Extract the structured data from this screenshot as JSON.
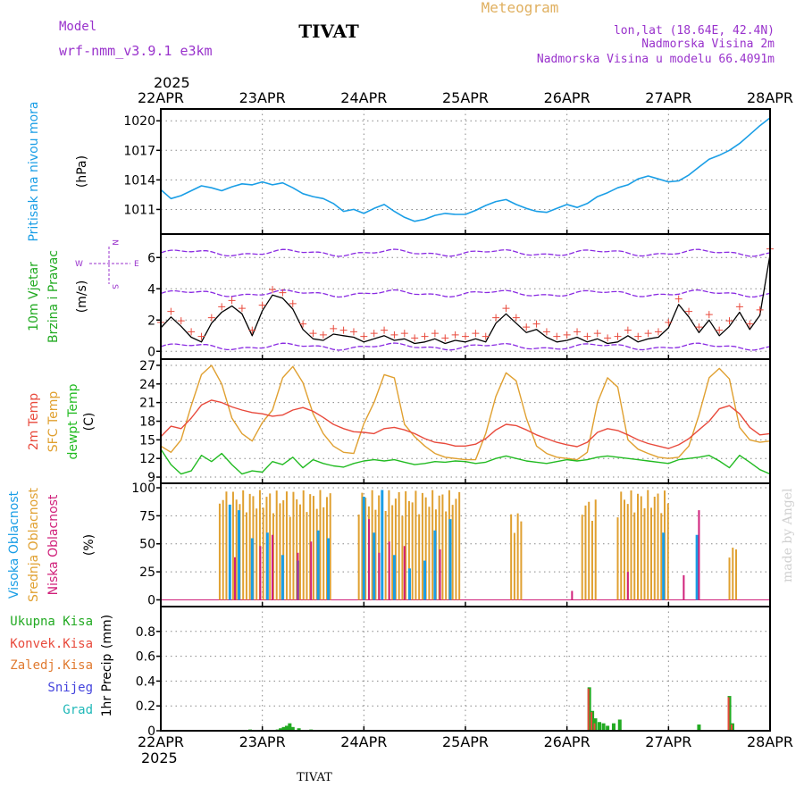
{
  "header": {
    "model_label": "Model",
    "model_name": "wrf-nmm_v3.9.1 e3km",
    "station": "TIVAT",
    "meteogram": "Meteogram",
    "lonlat": "lon,lat (18.64E, 42.4N)",
    "elevation": "Nadmorska Visina 2m",
    "model_elevation": "Nadmorska Visina u modelu 66.4091m",
    "year_top": "2025",
    "year_bottom": "2025",
    "station_footer": "TIVAT",
    "watermark": "made by Angel"
  },
  "colors": {
    "pressure": "#1a9ee6",
    "wind_title": "#22aa22",
    "temp2m": "#e84a3c",
    "sfc": "#e0a030",
    "dewpt": "#22bb22",
    "high_cloud": "#1a9ee6",
    "mid_cloud": "#e0a030",
    "low_cloud": "#d0207a",
    "precip_total": "#22aa22",
    "precip_conv": "#e84a3c",
    "precip_frozen": "#e07a30",
    "snow": "#4444dd",
    "graupel": "#20b8b8",
    "direction": "#8a2be2",
    "speed_line": "#000000",
    "gust": "#e84a3c",
    "header_purple": "#9932cc",
    "meteogram_gold": "#e0b060"
  },
  "chart_data": [
    {
      "type": "line",
      "id": "pressure",
      "ylabel_title": "Pritisak na nivou mora",
      "ylabel_unit": "(hPa)",
      "ylim": [
        1008.5,
        1021.2
      ],
      "yticks": [
        1011,
        1014,
        1017,
        1020
      ],
      "xlim": [
        0,
        6
      ],
      "xlabels": [
        "22APR",
        "23APR",
        "24APR",
        "25APR",
        "26APR",
        "27APR",
        "28APR"
      ],
      "series": [
        {
          "name": "pressure",
          "x": [
            0,
            0.1,
            0.2,
            0.3,
            0.4,
            0.5,
            0.6,
            0.7,
            0.8,
            0.9,
            1.0,
            1.1,
            1.2,
            1.3,
            1.4,
            1.5,
            1.6,
            1.7,
            1.8,
            1.9,
            2.0,
            2.1,
            2.2,
            2.3,
            2.4,
            2.5,
            2.6,
            2.7,
            2.8,
            2.9,
            3.0,
            3.1,
            3.2,
            3.3,
            3.4,
            3.5,
            3.6,
            3.7,
            3.8,
            3.9,
            4.0,
            4.1,
            4.2,
            4.3,
            4.4,
            4.5,
            4.6,
            4.7,
            4.8,
            4.9,
            5.0,
            5.1,
            5.2,
            5.3,
            5.4,
            5.5,
            5.6,
            5.7,
            5.8,
            5.9,
            6.0
          ],
          "values": [
            1013.0,
            1012.1,
            1012.4,
            1012.9,
            1013.4,
            1013.2,
            1012.9,
            1013.3,
            1013.6,
            1013.5,
            1013.8,
            1013.5,
            1013.7,
            1013.2,
            1012.6,
            1012.3,
            1012.1,
            1011.6,
            1010.8,
            1011.0,
            1010.6,
            1011.1,
            1011.5,
            1010.8,
            1010.2,
            1009.8,
            1010.0,
            1010.4,
            1010.6,
            1010.5,
            1010.5,
            1010.9,
            1011.4,
            1011.8,
            1012.0,
            1011.5,
            1011.1,
            1010.8,
            1010.7,
            1011.1,
            1011.5,
            1011.2,
            1011.6,
            1012.3,
            1012.7,
            1013.2,
            1013.5,
            1014.1,
            1014.4,
            1014.1,
            1013.8,
            1013.9,
            1014.5,
            1015.3,
            1016.1,
            1016.5,
            1017.0,
            1017.7,
            1018.6,
            1019.5,
            1020.3
          ]
        }
      ]
    },
    {
      "type": "line",
      "id": "wind",
      "ylabel_title_1": "10m Vjetar",
      "ylabel_title_2": "Brzina i Pravac",
      "ylabel_unit": "(m/s)",
      "compass_n": "N",
      "compass_w": "W",
      "compass_e": "E",
      "compass_s": "S",
      "ylim": [
        -0.5,
        7.5
      ],
      "yticks": [
        0,
        2,
        4,
        6
      ],
      "series": [
        {
          "name": "speed",
          "x": [
            0,
            0.1,
            0.2,
            0.3,
            0.4,
            0.5,
            0.6,
            0.7,
            0.8,
            0.9,
            1.0,
            1.1,
            1.2,
            1.3,
            1.4,
            1.5,
            1.6,
            1.7,
            1.8,
            1.9,
            2.0,
            2.1,
            2.2,
            2.3,
            2.4,
            2.5,
            2.6,
            2.7,
            2.8,
            2.9,
            3.0,
            3.1,
            3.2,
            3.3,
            3.4,
            3.5,
            3.6,
            3.7,
            3.8,
            3.9,
            4.0,
            4.1,
            4.2,
            4.3,
            4.4,
            4.5,
            4.6,
            4.7,
            4.8,
            4.9,
            5.0,
            5.1,
            5.2,
            5.3,
            5.4,
            5.5,
            5.6,
            5.7,
            5.8,
            5.9,
            6.0
          ],
          "values": [
            1.5,
            2.2,
            1.6,
            0.9,
            0.6,
            1.8,
            2.5,
            2.9,
            2.4,
            1.0,
            2.6,
            3.6,
            3.4,
            2.7,
            1.4,
            0.8,
            0.7,
            1.1,
            1.0,
            0.9,
            0.6,
            0.8,
            1.0,
            0.7,
            0.8,
            0.5,
            0.6,
            0.8,
            0.5,
            0.7,
            0.6,
            0.8,
            0.6,
            1.8,
            2.4,
            1.8,
            1.2,
            1.4,
            0.9,
            0.6,
            0.7,
            0.9,
            0.6,
            0.8,
            0.5,
            0.6,
            1.0,
            0.6,
            0.8,
            0.9,
            1.5,
            3.0,
            2.2,
            1.2,
            2.0,
            1.0,
            1.6,
            2.5,
            1.4,
            2.3,
            6.2
          ]
        },
        {
          "name": "direction",
          "bands": [
            0.3,
            3.7,
            6.3
          ],
          "values": [
            0.8,
            1.0,
            1.2,
            0.8
          ]
        }
      ]
    },
    {
      "type": "line",
      "id": "temperature",
      "ylabel_title_1": "2m Temp",
      "ylabel_title_2": "SFC Temp",
      "ylabel_title_3": "dewpt Temp",
      "ylabel_unit": "(C)",
      "ylim": [
        8,
        28
      ],
      "yticks": [
        9,
        12,
        15,
        18,
        21,
        24,
        27
      ],
      "series": [
        {
          "name": "temp2m",
          "x": [
            0,
            0.1,
            0.2,
            0.3,
            0.4,
            0.5,
            0.6,
            0.7,
            0.8,
            0.9,
            1.0,
            1.1,
            1.2,
            1.3,
            1.4,
            1.5,
            1.6,
            1.7,
            1.8,
            1.9,
            2.0,
            2.1,
            2.2,
            2.3,
            2.4,
            2.5,
            2.6,
            2.7,
            2.8,
            2.9,
            3.0,
            3.1,
            3.2,
            3.3,
            3.4,
            3.5,
            3.6,
            3.7,
            3.8,
            3.9,
            4.0,
            4.1,
            4.2,
            4.3,
            4.4,
            4.5,
            4.6,
            4.7,
            4.8,
            4.9,
            5.0,
            5.1,
            5.2,
            5.3,
            5.4,
            5.5,
            5.6,
            5.7,
            5.8,
            5.9,
            6.0
          ],
          "values": [
            15.5,
            17.2,
            16.8,
            18.5,
            20.6,
            21.4,
            21.0,
            20.3,
            19.8,
            19.4,
            19.2,
            18.8,
            19.0,
            19.8,
            20.2,
            19.6,
            18.6,
            17.5,
            16.8,
            16.3,
            16.2,
            16.0,
            16.8,
            17.0,
            16.6,
            16.0,
            15.2,
            14.6,
            14.4,
            14.0,
            14.0,
            14.3,
            15.2,
            16.6,
            17.5,
            17.3,
            16.6,
            15.8,
            15.2,
            14.6,
            14.2,
            13.9,
            14.6,
            16.2,
            16.8,
            16.5,
            15.8,
            15.0,
            14.4,
            14.0,
            13.6,
            14.2,
            15.2,
            16.6,
            18.0,
            20.0,
            20.5,
            19.2,
            17.0,
            15.8,
            16.0
          ]
        },
        {
          "name": "sfc",
          "x": [
            0,
            0.1,
            0.2,
            0.3,
            0.4,
            0.5,
            0.6,
            0.7,
            0.8,
            0.9,
            1.0,
            1.1,
            1.2,
            1.3,
            1.4,
            1.5,
            1.6,
            1.7,
            1.8,
            1.9,
            2.0,
            2.1,
            2.2,
            2.3,
            2.4,
            2.5,
            2.6,
            2.7,
            2.8,
            2.9,
            3.0,
            3.1,
            3.2,
            3.3,
            3.4,
            3.5,
            3.6,
            3.7,
            3.8,
            3.9,
            4.0,
            4.1,
            4.2,
            4.3,
            4.4,
            4.5,
            4.6,
            4.7,
            4.8,
            4.9,
            5.0,
            5.1,
            5.2,
            5.3,
            5.4,
            5.5,
            5.6,
            5.7,
            5.8,
            5.9,
            6.0
          ],
          "values": [
            14.0,
            13.0,
            15.0,
            20.5,
            25.5,
            27.0,
            24.0,
            18.5,
            16.0,
            14.8,
            17.8,
            19.8,
            25.0,
            26.8,
            24.2,
            19.2,
            16.0,
            14.0,
            13.0,
            12.8,
            17.6,
            21.0,
            25.5,
            25.0,
            17.5,
            15.5,
            14.0,
            12.8,
            12.2,
            12.0,
            11.8,
            11.8,
            16.0,
            22.0,
            25.8,
            24.5,
            18.5,
            14.0,
            12.8,
            12.2,
            12.0,
            11.8,
            13.0,
            21.0,
            25.0,
            23.5,
            15.0,
            13.5,
            12.8,
            12.2,
            12.0,
            12.2,
            14.0,
            19.0,
            25.0,
            26.5,
            24.8,
            17.0,
            15.0,
            14.6,
            14.8
          ]
        },
        {
          "name": "dewpt",
          "x": [
            0,
            0.1,
            0.2,
            0.3,
            0.4,
            0.5,
            0.6,
            0.7,
            0.8,
            0.9,
            1.0,
            1.1,
            1.2,
            1.3,
            1.4,
            1.5,
            1.6,
            1.7,
            1.8,
            1.9,
            2.0,
            2.1,
            2.2,
            2.3,
            2.4,
            2.5,
            2.6,
            2.7,
            2.8,
            2.9,
            3.0,
            3.1,
            3.2,
            3.3,
            3.4,
            3.5,
            3.6,
            3.7,
            3.8,
            3.9,
            4.0,
            4.1,
            4.2,
            4.3,
            4.4,
            4.5,
            4.6,
            4.7,
            4.8,
            4.9,
            5.0,
            5.1,
            5.2,
            5.3,
            5.4,
            5.5,
            5.6,
            5.7,
            5.8,
            5.9,
            6.0
          ],
          "values": [
            13.5,
            11.0,
            9.5,
            10.0,
            12.5,
            11.5,
            12.8,
            11.0,
            9.5,
            10.0,
            9.8,
            11.5,
            11.0,
            12.2,
            10.5,
            11.8,
            11.2,
            10.8,
            10.6,
            11.2,
            11.6,
            11.8,
            11.6,
            11.8,
            11.4,
            11.0,
            11.2,
            11.5,
            11.4,
            11.6,
            11.5,
            11.2,
            11.4,
            12.0,
            12.4,
            12.0,
            11.6,
            11.4,
            11.2,
            11.5,
            11.8,
            11.6,
            11.8,
            12.2,
            12.4,
            12.2,
            12.0,
            11.8,
            11.6,
            11.4,
            11.2,
            11.8,
            12.0,
            12.2,
            12.5,
            11.6,
            10.5,
            12.5,
            11.4,
            10.2,
            9.5
          ]
        }
      ]
    },
    {
      "type": "bar",
      "id": "clouds",
      "ylabel_title_1": "Visoka Oblacnost",
      "ylabel_title_2": "Srednja Oblacnost",
      "ylabel_title_3": "Niska Oblacnost",
      "ylabel_unit": "(%)",
      "ylim": [
        -6,
        104
      ],
      "yticks": [
        0,
        25,
        50,
        75,
        100
      ],
      "series": [
        {
          "name": "mid",
          "segments": [
            {
              "x0": 0.58,
              "x1": 1.7,
              "value": 98
            },
            {
              "x0": 1.95,
              "x1": 2.95,
              "value": 98
            },
            {
              "x0": 3.45,
              "x1": 3.55,
              "value": 78
            },
            {
              "x0": 4.15,
              "x1": 4.3,
              "value": 90
            },
            {
              "x0": 4.5,
              "x1": 5.0,
              "value": 98
            },
            {
              "x0": 5.6,
              "x1": 5.68,
              "value": 48
            }
          ]
        },
        {
          "name": "high",
          "x": [
            0.68,
            0.77,
            0.9,
            1.05,
            1.2,
            1.35,
            1.55,
            1.65,
            2.0,
            2.1,
            2.18,
            2.3,
            2.45,
            2.6,
            2.7,
            2.85,
            4.95,
            5.28
          ],
          "values": [
            85,
            80,
            55,
            60,
            40,
            35,
            62,
            55,
            92,
            60,
            98,
            40,
            28,
            35,
            62,
            72,
            60,
            58
          ]
        },
        {
          "name": "low",
          "x": [
            0.73,
            0.98,
            1.1,
            1.35,
            1.48,
            2.05,
            2.15,
            2.25,
            2.4,
            2.75,
            4.05,
            4.6,
            5.15,
            5.3
          ],
          "values": [
            38,
            48,
            58,
            42,
            52,
            72,
            42,
            52,
            48,
            45,
            8,
            25,
            22,
            80
          ]
        }
      ]
    },
    {
      "type": "bar",
      "id": "precip",
      "ylabel_title": "1hr Precip",
      "ylabel_unit": "(mm)",
      "legend": [
        "Ukupna Kisa",
        "Konvek.Kisa",
        "Zaledj.Kisa",
        "Snijeg",
        "Grad"
      ],
      "ylim": [
        0,
        1.0
      ],
      "yticks": [
        0,
        0.2,
        0.4,
        0.6,
        0.8
      ],
      "series": [
        {
          "name": "total",
          "x": [
            0.88,
            1.15,
            1.18,
            1.21,
            1.24,
            1.27,
            1.3,
            1.36,
            1.48,
            4.22,
            4.25,
            4.28,
            4.32,
            4.36,
            4.4,
            4.46,
            4.52,
            5.3,
            5.6,
            5.63
          ],
          "values": [
            0.01,
            0.01,
            0.02,
            0.03,
            0.04,
            0.06,
            0.03,
            0.02,
            0.01,
            0.35,
            0.16,
            0.1,
            0.07,
            0.06,
            0.04,
            0.06,
            0.09,
            0.05,
            0.28,
            0.06
          ]
        },
        {
          "name": "convective",
          "x": [
            4.22,
            4.25,
            4.28,
            5.6,
            5.63
          ],
          "values": [
            0.34,
            0.15,
            0.06,
            0.27,
            0.05
          ]
        }
      ]
    }
  ]
}
